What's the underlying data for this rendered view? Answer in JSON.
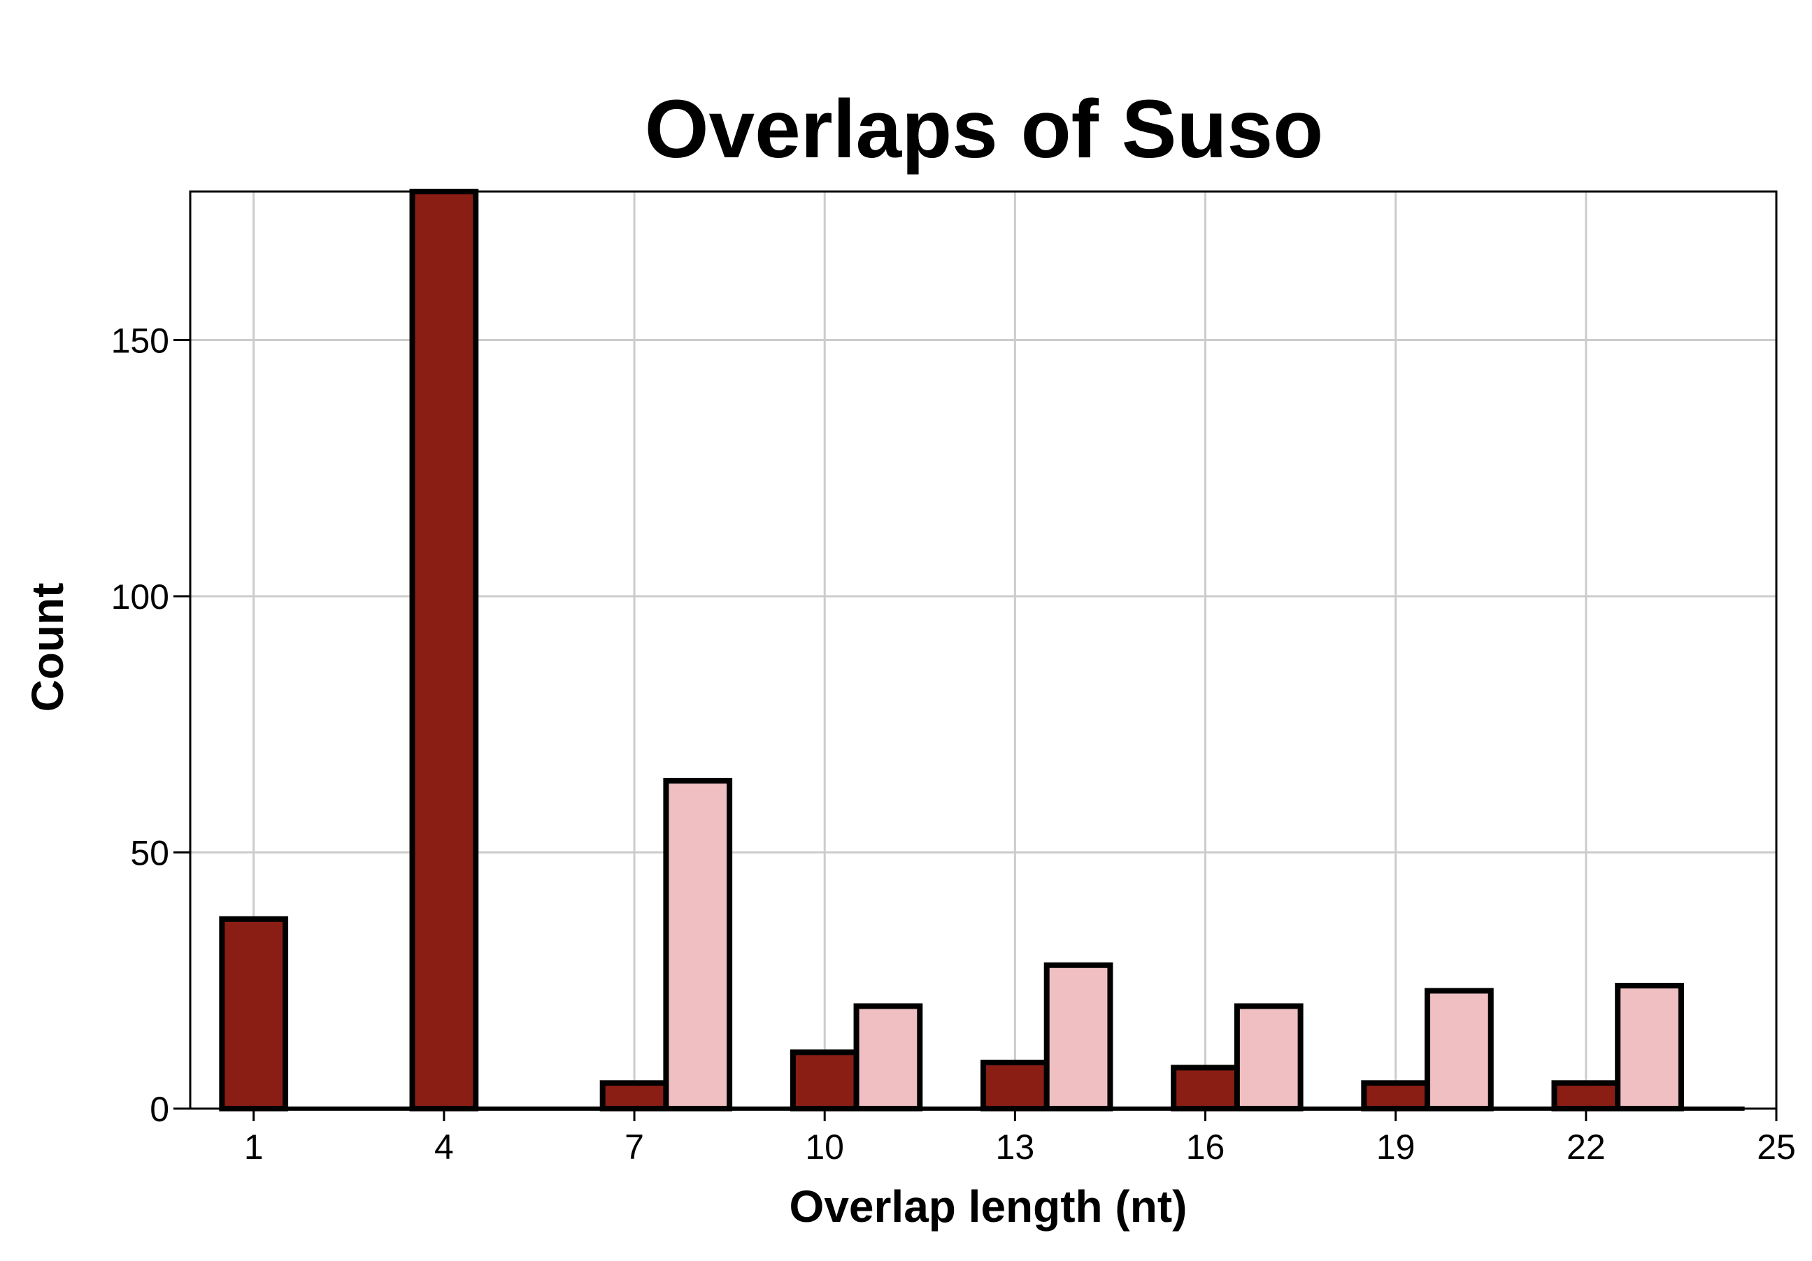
{
  "chart_data": {
    "type": "bar",
    "title": "Overlaps of Suso",
    "xlabel": "Overlap length (nt)",
    "ylabel": "Count",
    "xlim": [
      0,
      25
    ],
    "ylim": [
      0,
      179
    ],
    "xticks": [
      "1",
      "4",
      "7",
      "10",
      "13",
      "16",
      "19",
      "22",
      "25"
    ],
    "yticks": [
      "0",
      "50",
      "100",
      "150"
    ],
    "grid": true,
    "bar_width": 1,
    "colors": {
      "dark": "#8B1E14",
      "light": "#F0BFC2",
      "grid": "#cccccc"
    },
    "x": [
      1,
      2,
      3,
      4,
      5,
      6,
      7,
      8,
      9,
      10,
      11,
      12,
      13,
      14,
      15,
      16,
      17,
      18,
      19,
      20,
      21,
      22,
      23,
      24
    ],
    "series": [
      {
        "color": "#8B1E14",
        "x": [
          1,
          4,
          7,
          10,
          13,
          16,
          19,
          22
        ],
        "values": [
          37,
          179,
          5,
          11,
          9,
          8,
          5,
          5
        ]
      },
      {
        "color": "#F0BFC2",
        "x": [
          8,
          11,
          14,
          17,
          20,
          23
        ],
        "values": [
          64,
          20,
          28,
          20,
          23,
          24
        ]
      }
    ],
    "zero_bins": [
      2,
      3,
      5,
      6,
      9,
      12,
      15,
      18,
      21,
      24
    ]
  }
}
